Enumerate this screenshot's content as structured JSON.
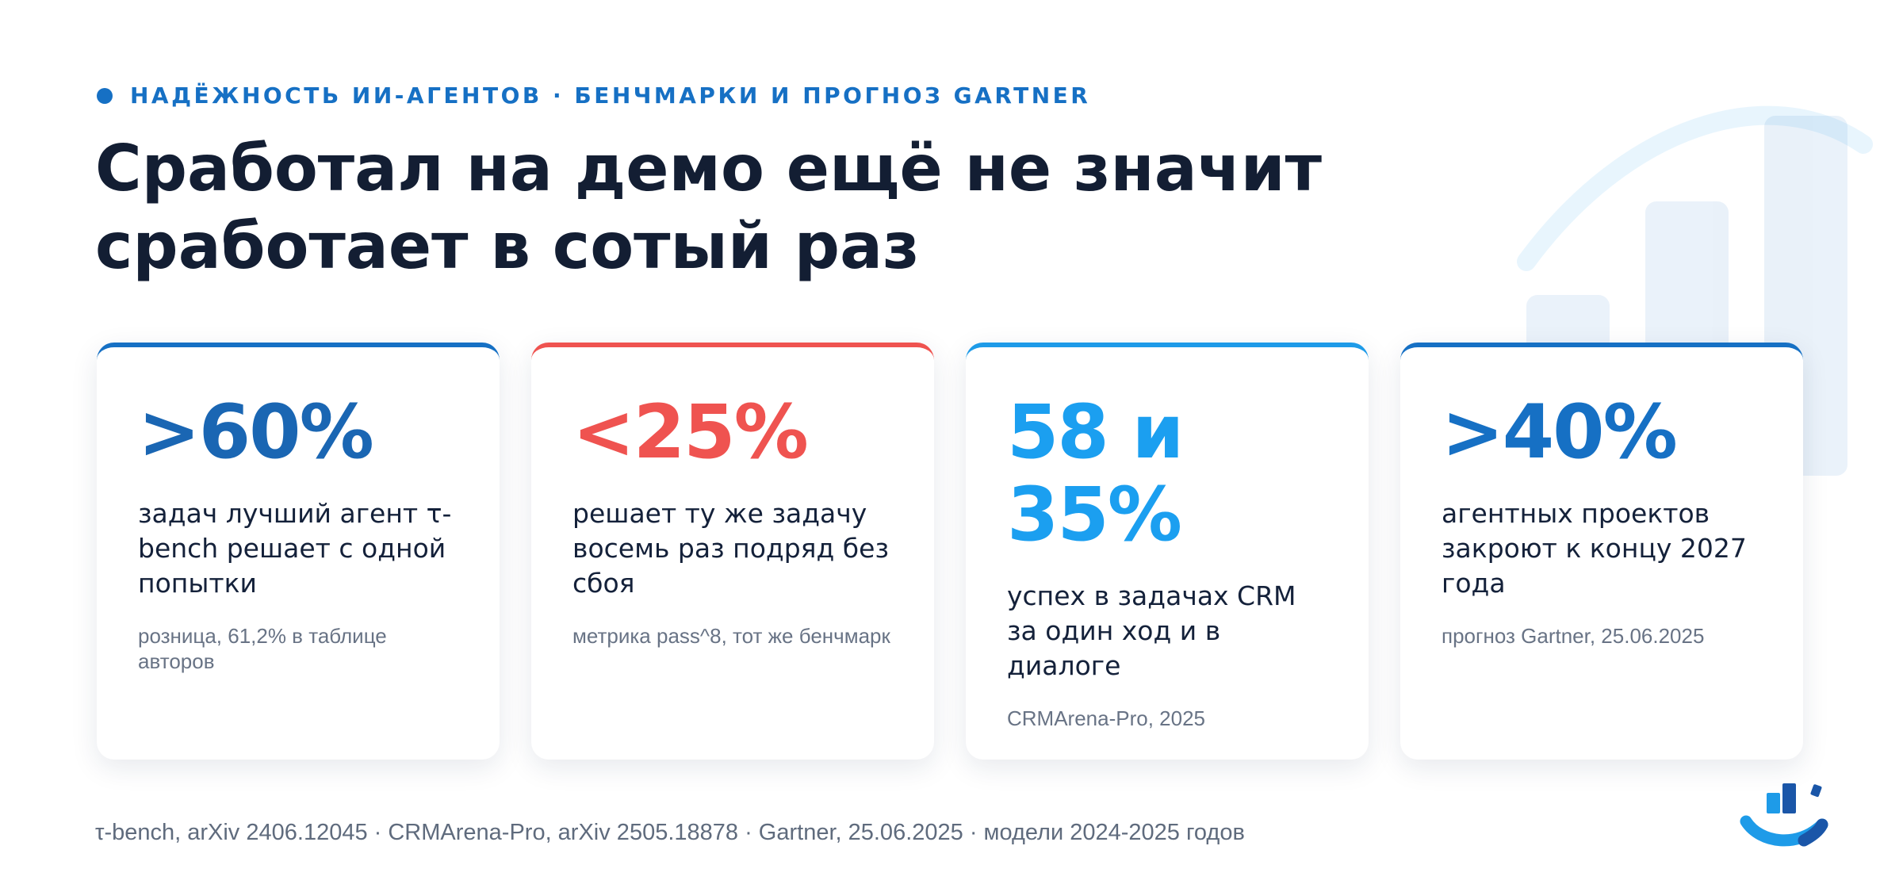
{
  "header": {
    "eyebrow": "НАДЁЖНОСТЬ ИИ-АГЕНТОВ · БЕНЧМАРКИ И ПРОГНОЗ GARTNER",
    "title": "Сработал на демо ещё не значит сработает в сотый раз"
  },
  "cards": [
    {
      "stat": ">60%",
      "description": "задач лучший агент τ-bench решает с одной попытки",
      "note": "розница, 61,2% в таблице авторов",
      "accent": "#1a66b3"
    },
    {
      "stat": "<25%",
      "description": "решает ту же задачу восемь раз подряд без сбоя",
      "note": "метрика pass^8, тот же бенчмарк",
      "accent": "#ef5350"
    },
    {
      "stat": "58 и 35%",
      "description": "успех в задачах CRM за один ход и в диалоге",
      "note": "CRMArena-Pro, 2025",
      "accent": "#1b9ff0"
    },
    {
      "stat": ">40%",
      "description": "агентных проектов закроют к концу 2027 года",
      "note": "прогноз Gartner, 25.06.2025",
      "accent": "#1670c4"
    }
  ],
  "footer": {
    "sources": "τ-bench, arXiv 2406.12045 · CRMArena-Pro, arXiv 2505.18878 · Gartner, 25.06.2025 · модели 2024-2025 годов"
  },
  "icons": {
    "logo": "chart-logo-icon",
    "background": "growth-chart-icon"
  }
}
